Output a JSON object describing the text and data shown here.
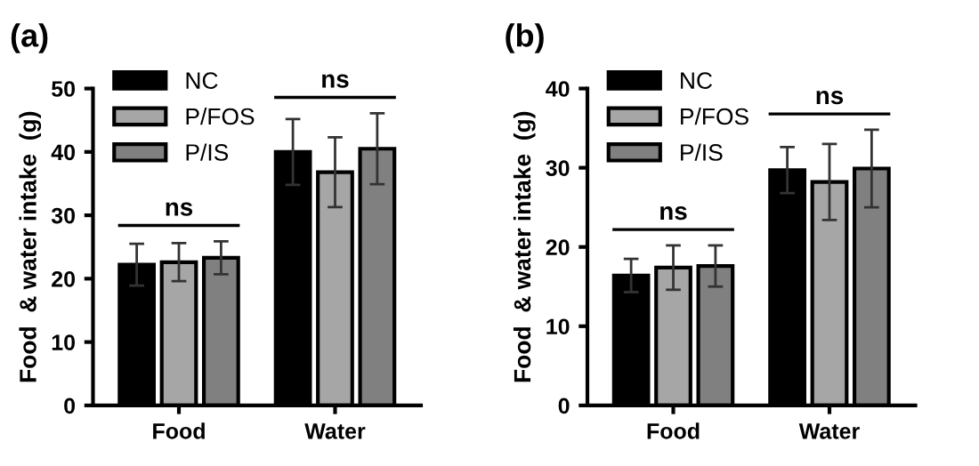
{
  "chart_data": [
    {
      "type": "bar",
      "title": "(a)",
      "ylabel": "Food  & water intake  (g)",
      "categories": [
        "Food",
        "Water"
      ],
      "ylim": [
        0,
        50
      ],
      "yticks": [
        0,
        10,
        20,
        30,
        40,
        50
      ],
      "legend": "top left",
      "grid": false,
      "annotations": [
        "ns",
        "ns"
      ],
      "series": [
        {
          "name": "NC",
          "color": "#000000",
          "values": [
            22.2,
            40.0
          ],
          "errors": [
            3.3,
            5.2
          ]
        },
        {
          "name": "P/FOS",
          "color": "#a6a6a6",
          "values": [
            22.6,
            36.8
          ],
          "errors": [
            3.0,
            5.5
          ]
        },
        {
          "name": "P/IS",
          "color": "#808080",
          "values": [
            23.3,
            40.5
          ],
          "errors": [
            2.6,
            5.6
          ]
        }
      ]
    },
    {
      "type": "bar",
      "title": "(b)",
      "ylabel": "Food  & water intake  (g)",
      "categories": [
        "Food",
        "Water"
      ],
      "ylim": [
        0,
        40
      ],
      "yticks": [
        0,
        10,
        20,
        30,
        40
      ],
      "legend": "top left",
      "grid": false,
      "annotations": [
        "ns",
        "ns"
      ],
      "series": [
        {
          "name": "NC",
          "color": "#000000",
          "values": [
            16.4,
            29.7
          ],
          "errors": [
            2.1,
            2.9
          ]
        },
        {
          "name": "P/FOS",
          "color": "#a6a6a6",
          "values": [
            17.4,
            28.2
          ],
          "errors": [
            2.8,
            4.8
          ]
        },
        {
          "name": "P/IS",
          "color": "#808080",
          "values": [
            17.6,
            29.9
          ],
          "errors": [
            2.6,
            4.9
          ]
        }
      ]
    }
  ]
}
